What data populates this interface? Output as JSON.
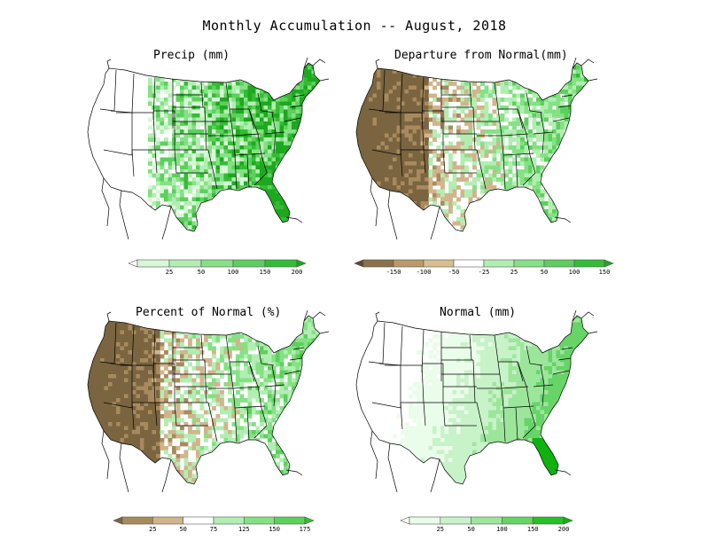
{
  "title": "Monthly Accumulation -- August, 2018",
  "panels": [
    {
      "id": "precip",
      "title": "Precip (mm)",
      "scheme": "green",
      "legend": {
        "ticks": [
          "25",
          "50",
          "100",
          "150",
          "200"
        ],
        "colors": [
          "#ffffff",
          "#d8f7d8",
          "#b2eeb2",
          "#84e184",
          "#5cd05c",
          "#34bd34",
          "#1ea81e"
        ]
      }
    },
    {
      "id": "departure",
      "title": "Departure from Normal(mm)",
      "scheme": "diverging",
      "legend": {
        "ticks": [
          "-150",
          "-100",
          "-50",
          "-25",
          "25",
          "50",
          "100",
          "150"
        ],
        "colors": [
          "#574a2e",
          "#8b7149",
          "#b89a6b",
          "#d8bf93",
          "#ffffff",
          "#b2eeb2",
          "#84e184",
          "#5cd05c",
          "#34bd34",
          "#1ea81e"
        ]
      }
    },
    {
      "id": "percent",
      "title": "Percent of Normal (%)",
      "scheme": "diverging",
      "legend": {
        "ticks": [
          "25",
          "50",
          "75",
          "125",
          "150",
          "175"
        ],
        "colors": [
          "#7a6540",
          "#a88a5e",
          "#d2b48c",
          "#ffffff",
          "#b2eeb2",
          "#84e184",
          "#5cd05c",
          "#34bd34"
        ]
      }
    },
    {
      "id": "normal",
      "title": "Normal (mm)",
      "scheme": "normal",
      "legend": {
        "ticks": [
          "25",
          "50",
          "100",
          "150",
          "200"
        ],
        "colors": [
          "#ffffff",
          "#eafcea",
          "#c8f2c8",
          "#9ce69c",
          "#66d466",
          "#22c322",
          "#0fb20f"
        ]
      }
    }
  ]
}
